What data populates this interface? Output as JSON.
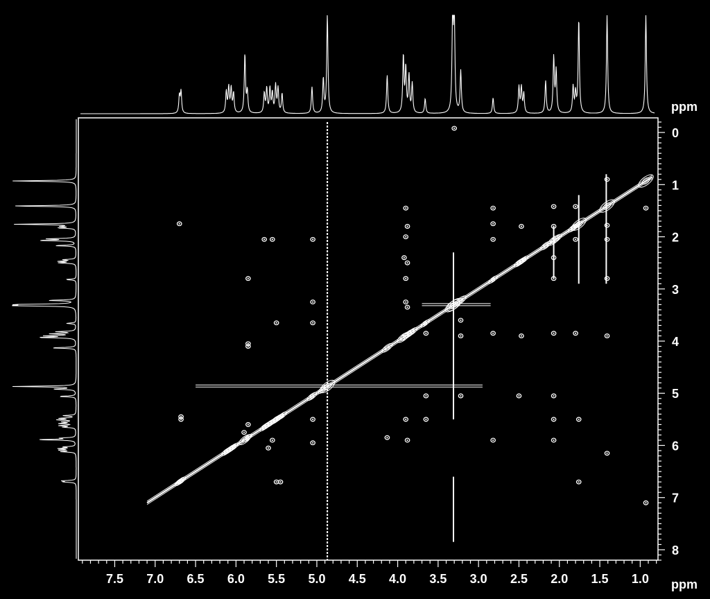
{
  "chart_data": {
    "type": "heatmap",
    "title": "",
    "xlabel": "ppm",
    "ylabel": "ppm",
    "x_axis": {
      "range": [
        7.95,
        0.78
      ],
      "direction": "reversed",
      "ticks": [
        7.5,
        7.0,
        6.5,
        6.0,
        5.5,
        5.0,
        4.5,
        4.0,
        3.5,
        3.0,
        2.5,
        2.0,
        1.5,
        1.0
      ],
      "tick_labels": [
        "7.5",
        "7.0",
        "6.5",
        "6.0",
        "5.5",
        "5.0",
        "4.5",
        "4.0",
        "3.5",
        "3.0",
        "2.5",
        "2.0",
        "1.5",
        "1.0"
      ],
      "minor_step": 0.1
    },
    "y_axis": {
      "range": [
        -0.28,
        8.2
      ],
      "direction": "downward",
      "ticks": [
        0,
        1,
        2,
        3,
        4,
        5,
        6,
        7,
        8
      ],
      "tick_labels": [
        "0",
        "1",
        "2",
        "3",
        "4",
        "5",
        "6",
        "7",
        "8"
      ],
      "minor_step": 0.1,
      "position": "right"
    },
    "colors": {
      "background": "#000000",
      "foreground": "#ffffff"
    },
    "projection_1d": {
      "description_free": true,
      "peaks": [
        {
          "ppm": 6.7,
          "height": 0.18
        },
        {
          "ppm": 6.68,
          "height": 0.22
        },
        {
          "ppm": 6.12,
          "height": 0.22
        },
        {
          "ppm": 6.09,
          "height": 0.26
        },
        {
          "ppm": 6.06,
          "height": 0.25
        },
        {
          "ppm": 6.03,
          "height": 0.2
        },
        {
          "ppm": 5.89,
          "height": 0.6
        },
        {
          "ppm": 5.86,
          "height": 0.22
        },
        {
          "ppm": 5.65,
          "height": 0.2
        },
        {
          "ppm": 5.62,
          "height": 0.25
        },
        {
          "ppm": 5.58,
          "height": 0.25
        },
        {
          "ppm": 5.55,
          "height": 0.2
        },
        {
          "ppm": 5.51,
          "height": 0.28
        },
        {
          "ppm": 5.48,
          "height": 0.25
        },
        {
          "ppm": 5.43,
          "height": 0.2
        },
        {
          "ppm": 5.06,
          "height": 0.27
        },
        {
          "ppm": 4.92,
          "height": 0.35
        },
        {
          "ppm": 4.87,
          "height": 1.0
        },
        {
          "ppm": 4.13,
          "height": 0.39
        },
        {
          "ppm": 3.93,
          "height": 0.58
        },
        {
          "ppm": 3.9,
          "height": 0.45
        },
        {
          "ppm": 3.86,
          "height": 0.38
        },
        {
          "ppm": 3.82,
          "height": 0.3
        },
        {
          "ppm": 3.66,
          "height": 0.15
        },
        {
          "ppm": 3.32,
          "height": 1.0
        },
        {
          "ppm": 3.3,
          "height": 1.0
        },
        {
          "ppm": 3.22,
          "height": 0.43
        },
        {
          "ppm": 2.82,
          "height": 0.16
        },
        {
          "ppm": 2.5,
          "height": 0.27
        },
        {
          "ppm": 2.47,
          "height": 0.26
        },
        {
          "ppm": 2.44,
          "height": 0.2
        },
        {
          "ppm": 2.17,
          "height": 0.33
        },
        {
          "ppm": 2.07,
          "height": 0.57
        },
        {
          "ppm": 2.04,
          "height": 0.43
        },
        {
          "ppm": 1.83,
          "height": 0.27
        },
        {
          "ppm": 1.8,
          "height": 0.2
        },
        {
          "ppm": 1.76,
          "height": 0.96
        },
        {
          "ppm": 1.41,
          "height": 1.0
        },
        {
          "ppm": 0.93,
          "height": 1.0
        }
      ]
    },
    "diagonal": {
      "from": 7.1,
      "to": 0.85
    },
    "cross_peaks": [
      {
        "x": 6.7,
        "y": 1.75
      },
      {
        "x": 6.68,
        "y": 5.45
      },
      {
        "x": 6.68,
        "y": 5.5
      },
      {
        "x": 5.85,
        "y": 5.6
      },
      {
        "x": 5.9,
        "y": 5.75
      },
      {
        "x": 5.55,
        "y": 2.05
      },
      {
        "x": 5.65,
        "y": 2.05
      },
      {
        "x": 5.5,
        "y": 3.65
      },
      {
        "x": 5.85,
        "y": 4.05
      },
      {
        "x": 5.85,
        "y": 4.1
      },
      {
        "x": 5.85,
        "y": 2.8
      },
      {
        "x": 5.55,
        "y": 5.9
      },
      {
        "x": 5.6,
        "y": 6.05
      },
      {
        "x": 5.5,
        "y": 6.7
      },
      {
        "x": 5.45,
        "y": 6.7
      },
      {
        "x": 5.05,
        "y": 2.05
      },
      {
        "x": 5.05,
        "y": 3.25
      },
      {
        "x": 5.05,
        "y": 3.65
      },
      {
        "x": 5.05,
        "y": 5.5
      },
      {
        "x": 5.05,
        "y": 5.95
      },
      {
        "x": 3.9,
        "y": 1.45
      },
      {
        "x": 3.88,
        "y": 1.8
      },
      {
        "x": 3.9,
        "y": 2.0
      },
      {
        "x": 3.92,
        "y": 2.4
      },
      {
        "x": 3.88,
        "y": 2.5
      },
      {
        "x": 3.9,
        "y": 2.8
      },
      {
        "x": 3.9,
        "y": 3.25
      },
      {
        "x": 3.88,
        "y": 3.35
      },
      {
        "x": 3.9,
        "y": 5.5
      },
      {
        "x": 3.88,
        "y": 5.9
      },
      {
        "x": 4.13,
        "y": 5.85
      },
      {
        "x": 3.65,
        "y": 3.85
      },
      {
        "x": 3.65,
        "y": 5.05
      },
      {
        "x": 3.65,
        "y": 5.5
      },
      {
        "x": 3.22,
        "y": 3.6
      },
      {
        "x": 3.22,
        "y": 3.9
      },
      {
        "x": 3.22,
        "y": 5.05
      },
      {
        "x": 2.82,
        "y": 1.45
      },
      {
        "x": 2.82,
        "y": 1.75
      },
      {
        "x": 2.82,
        "y": 2.05
      },
      {
        "x": 2.82,
        "y": 3.85
      },
      {
        "x": 2.82,
        "y": 5.9
      },
      {
        "x": 2.47,
        "y": 1.8
      },
      {
        "x": 2.47,
        "y": 3.9
      },
      {
        "x": 2.5,
        "y": 5.05
      },
      {
        "x": 2.07,
        "y": 1.42
      },
      {
        "x": 2.07,
        "y": 1.8
      },
      {
        "x": 2.07,
        "y": 2.4
      },
      {
        "x": 2.07,
        "y": 2.8
      },
      {
        "x": 2.07,
        "y": 3.85
      },
      {
        "x": 2.07,
        "y": 5.05
      },
      {
        "x": 2.07,
        "y": 5.5
      },
      {
        "x": 2.07,
        "y": 5.9
      },
      {
        "x": 1.8,
        "y": 1.42
      },
      {
        "x": 1.8,
        "y": 2.05
      },
      {
        "x": 1.8,
        "y": 3.85
      },
      {
        "x": 1.76,
        "y": 5.5
      },
      {
        "x": 1.76,
        "y": 6.7
      },
      {
        "x": 1.41,
        "y": 0.9
      },
      {
        "x": 1.41,
        "y": 1.78
      },
      {
        "x": 1.41,
        "y": 2.05
      },
      {
        "x": 1.41,
        "y": 2.8
      },
      {
        "x": 1.41,
        "y": 3.9
      },
      {
        "x": 1.41,
        "y": 6.15
      },
      {
        "x": 0.93,
        "y": 1.45
      },
      {
        "x": 0.93,
        "y": 7.1
      },
      {
        "x": 3.3,
        "y": -0.08
      }
    ],
    "streaks": [
      {
        "axis": "vertical",
        "at": 4.87,
        "from": -0.2,
        "to": 8.2
      },
      {
        "axis": "vertical",
        "at": 3.31,
        "from": 2.3,
        "to": 5.5
      },
      {
        "axis": "vertical",
        "at": 3.31,
        "from": 6.6,
        "to": 7.85
      },
      {
        "axis": "horizontal",
        "at": 4.86,
        "from": 6.5,
        "to": 2.95
      },
      {
        "axis": "horizontal",
        "at": 3.3,
        "from": 3.7,
        "to": 2.85
      },
      {
        "axis": "vertical",
        "at": 1.42,
        "from": 0.8,
        "to": 2.9
      },
      {
        "axis": "vertical",
        "at": 1.76,
        "from": 1.2,
        "to": 2.9
      },
      {
        "axis": "vertical",
        "at": 2.07,
        "from": 1.8,
        "to": 2.8
      }
    ]
  }
}
